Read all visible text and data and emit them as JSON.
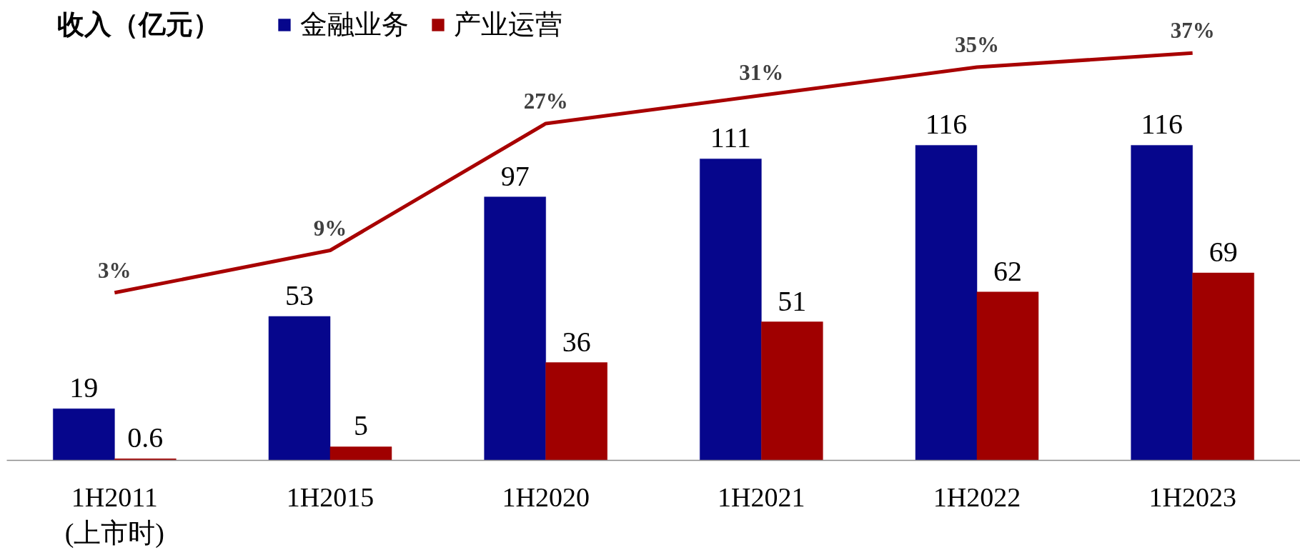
{
  "chart_data": {
    "type": "bar",
    "ylabel": "收入（亿元）",
    "categories": [
      "1H2011\n(上市时)",
      "1H2015",
      "1H2020",
      "1H2021",
      "1H2022",
      "1H2023"
    ],
    "series": [
      {
        "name": "金融业务",
        "color": "#06068c",
        "values": [
          19,
          53,
          97,
          111,
          116,
          116
        ]
      },
      {
        "name": "产业运营",
        "color": "#a00000",
        "values": [
          0.6,
          5,
          36,
          51,
          62,
          69
        ]
      },
      {
        "type": "line",
        "axis": "y2",
        "color": "#a80000",
        "values": [
          3,
          9,
          27,
          31,
          35,
          37
        ],
        "value_labels": [
          "3%",
          "9%",
          "27%",
          "31%",
          "35%",
          "37%"
        ]
      }
    ],
    "data_labels": true,
    "legend": "top left",
    "grid": false
  }
}
